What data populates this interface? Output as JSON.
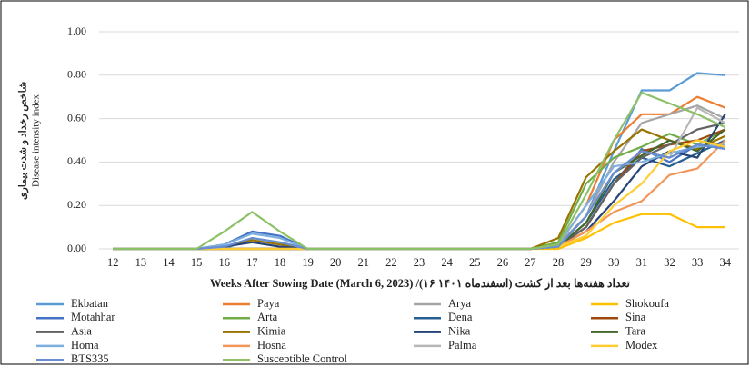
{
  "chart_data": {
    "type": "line",
    "y_label_fa": "شاخص رخداد و شدت بیماری",
    "y_label": "Disease intensity index",
    "x_label": "Weeks After Sowing Date (March 6, 2023) /(۱۶ اسفندماه ۱۴۰۱) تعداد هفته‌ها بعد از کشت",
    "x": [
      12,
      13,
      14,
      15,
      16,
      17,
      18,
      19,
      20,
      21,
      22,
      23,
      24,
      25,
      26,
      27,
      28,
      29,
      30,
      31,
      32,
      33,
      34
    ],
    "xlim": [
      11.5,
      34.5
    ],
    "ylim": [
      0,
      1
    ],
    "yticks": [
      {
        "value": 0,
        "label": "0.00"
      },
      {
        "value": 0.2,
        "label": "0.20"
      },
      {
        "value": 0.4,
        "label": "0.40"
      },
      {
        "value": 0.6,
        "label": "0.60"
      },
      {
        "value": 0.8,
        "label": "0.80"
      },
      {
        "value": 1,
        "label": "1.00"
      }
    ],
    "grid": true,
    "legend": "bottom",
    "series": [
      {
        "name": "Ekbatan",
        "color": "#5b9bd5",
        "values": [
          0,
          0,
          0,
          0,
          0,
          0.05,
          0.03,
          0,
          0,
          0,
          0,
          0,
          0,
          0,
          0,
          0,
          0.02,
          0.15,
          0.45,
          0.73,
          0.73,
          0.81,
          0.8
        ]
      },
      {
        "name": "Paya",
        "color": "#ed7d31",
        "values": [
          0,
          0,
          0,
          0,
          0,
          0,
          0,
          0,
          0,
          0,
          0,
          0,
          0,
          0,
          0,
          0,
          0.02,
          0.2,
          0.5,
          0.62,
          0.62,
          0.7,
          0.65
        ]
      },
      {
        "name": "Arya",
        "color": "#a5a5a5",
        "values": [
          0,
          0,
          0,
          0,
          0,
          0,
          0,
          0,
          0,
          0,
          0,
          0,
          0,
          0,
          0,
          0,
          0.02,
          0.15,
          0.4,
          0.58,
          0.62,
          0.66,
          0.6
        ]
      },
      {
        "name": "Shokoufa",
        "color": "#ffc000",
        "values": [
          0,
          0,
          0,
          0,
          0,
          0,
          0,
          0,
          0,
          0,
          0,
          0,
          0,
          0,
          0,
          0,
          0,
          0.05,
          0.12,
          0.16,
          0.16,
          0.1,
          0.1
        ]
      },
      {
        "name": "Motahhar",
        "color": "#4472c4",
        "values": [
          0,
          0,
          0,
          0,
          0.02,
          0.08,
          0.06,
          0,
          0,
          0,
          0,
          0,
          0,
          0,
          0,
          0,
          0.01,
          0.1,
          0.3,
          0.46,
          0.4,
          0.48,
          0.47
        ]
      },
      {
        "name": "Arta",
        "color": "#70ad47",
        "values": [
          0,
          0,
          0,
          0,
          0,
          0,
          0,
          0,
          0,
          0,
          0,
          0,
          0,
          0,
          0,
          0,
          0.03,
          0.3,
          0.42,
          0.47,
          0.53,
          0.48,
          0.55
        ]
      },
      {
        "name": "Dena",
        "color": "#255e91",
        "values": [
          0,
          0,
          0,
          0,
          0,
          0,
          0,
          0,
          0,
          0,
          0,
          0,
          0,
          0,
          0,
          0,
          0.01,
          0.12,
          0.32,
          0.42,
          0.38,
          0.44,
          0.5
        ]
      },
      {
        "name": "Sina",
        "color": "#9e480e",
        "values": [
          0,
          0,
          0,
          0,
          0,
          0,
          0,
          0,
          0,
          0,
          0,
          0,
          0,
          0,
          0,
          0,
          0.01,
          0.1,
          0.3,
          0.45,
          0.48,
          0.5,
          0.55
        ]
      },
      {
        "name": "Asia",
        "color": "#636363",
        "values": [
          0,
          0,
          0,
          0,
          0,
          0,
          0,
          0,
          0,
          0,
          0,
          0,
          0,
          0,
          0,
          0,
          0.01,
          0.1,
          0.3,
          0.42,
          0.48,
          0.55,
          0.58
        ]
      },
      {
        "name": "Kimia",
        "color": "#997300",
        "values": [
          0,
          0,
          0,
          0,
          0.01,
          0.04,
          0.02,
          0,
          0,
          0,
          0,
          0,
          0,
          0,
          0,
          0,
          0.05,
          0.33,
          0.45,
          0.55,
          0.5,
          0.46,
          0.52
        ]
      },
      {
        "name": "Nika",
        "color": "#264478",
        "values": [
          0,
          0,
          0,
          0,
          0.01,
          0.03,
          0.01,
          0,
          0,
          0,
          0,
          0,
          0,
          0,
          0,
          0,
          0.01,
          0.08,
          0.22,
          0.38,
          0.45,
          0.42,
          0.62
        ]
      },
      {
        "name": "Tara",
        "color": "#43682b",
        "values": [
          0,
          0,
          0,
          0,
          0,
          0,
          0,
          0,
          0,
          0,
          0,
          0,
          0,
          0,
          0,
          0,
          0.01,
          0.12,
          0.35,
          0.43,
          0.5,
          0.45,
          0.55
        ]
      },
      {
        "name": "Homa",
        "color": "#7cafdd",
        "values": [
          0,
          0,
          0,
          0,
          0.02,
          0.07,
          0.05,
          0,
          0,
          0,
          0,
          0,
          0,
          0,
          0,
          0,
          0.02,
          0.2,
          0.38,
          0.4,
          0.44,
          0.47,
          0.48
        ]
      },
      {
        "name": "Hosna",
        "color": "#f1975a",
        "values": [
          0,
          0,
          0,
          0,
          0,
          0,
          0,
          0,
          0,
          0,
          0,
          0,
          0,
          0,
          0,
          0,
          0.01,
          0.08,
          0.17,
          0.22,
          0.34,
          0.37,
          0.5
        ]
      },
      {
        "name": "Palma",
        "color": "#b7b7b7",
        "values": [
          0,
          0,
          0,
          0,
          0,
          0,
          0,
          0,
          0,
          0,
          0,
          0,
          0,
          0,
          0,
          0,
          0.01,
          0.15,
          0.35,
          0.45,
          0.42,
          0.65,
          0.58
        ]
      },
      {
        "name": "Modex",
        "color": "#ffcd33",
        "values": [
          0,
          0,
          0,
          0,
          0,
          0,
          0,
          0,
          0,
          0,
          0,
          0,
          0,
          0,
          0,
          0,
          0.01,
          0.06,
          0.2,
          0.3,
          0.45,
          0.5,
          0.47
        ]
      },
      {
        "name": "BTS335",
        "color": "#698ed0",
        "values": [
          0,
          0,
          0,
          0,
          0.01,
          0.05,
          0.03,
          0,
          0,
          0,
          0,
          0,
          0,
          0,
          0,
          0,
          0.01,
          0.15,
          0.35,
          0.45,
          0.42,
          0.48,
          0.46
        ]
      },
      {
        "name": "Susceptible Control",
        "color": "#8cc168",
        "values": [
          0,
          0,
          0,
          0,
          0.08,
          0.17,
          0.08,
          0,
          0,
          0,
          0,
          0,
          0,
          0,
          0,
          0,
          0.02,
          0.25,
          0.5,
          0.72,
          0.67,
          0.62,
          0.56
        ]
      }
    ]
  }
}
